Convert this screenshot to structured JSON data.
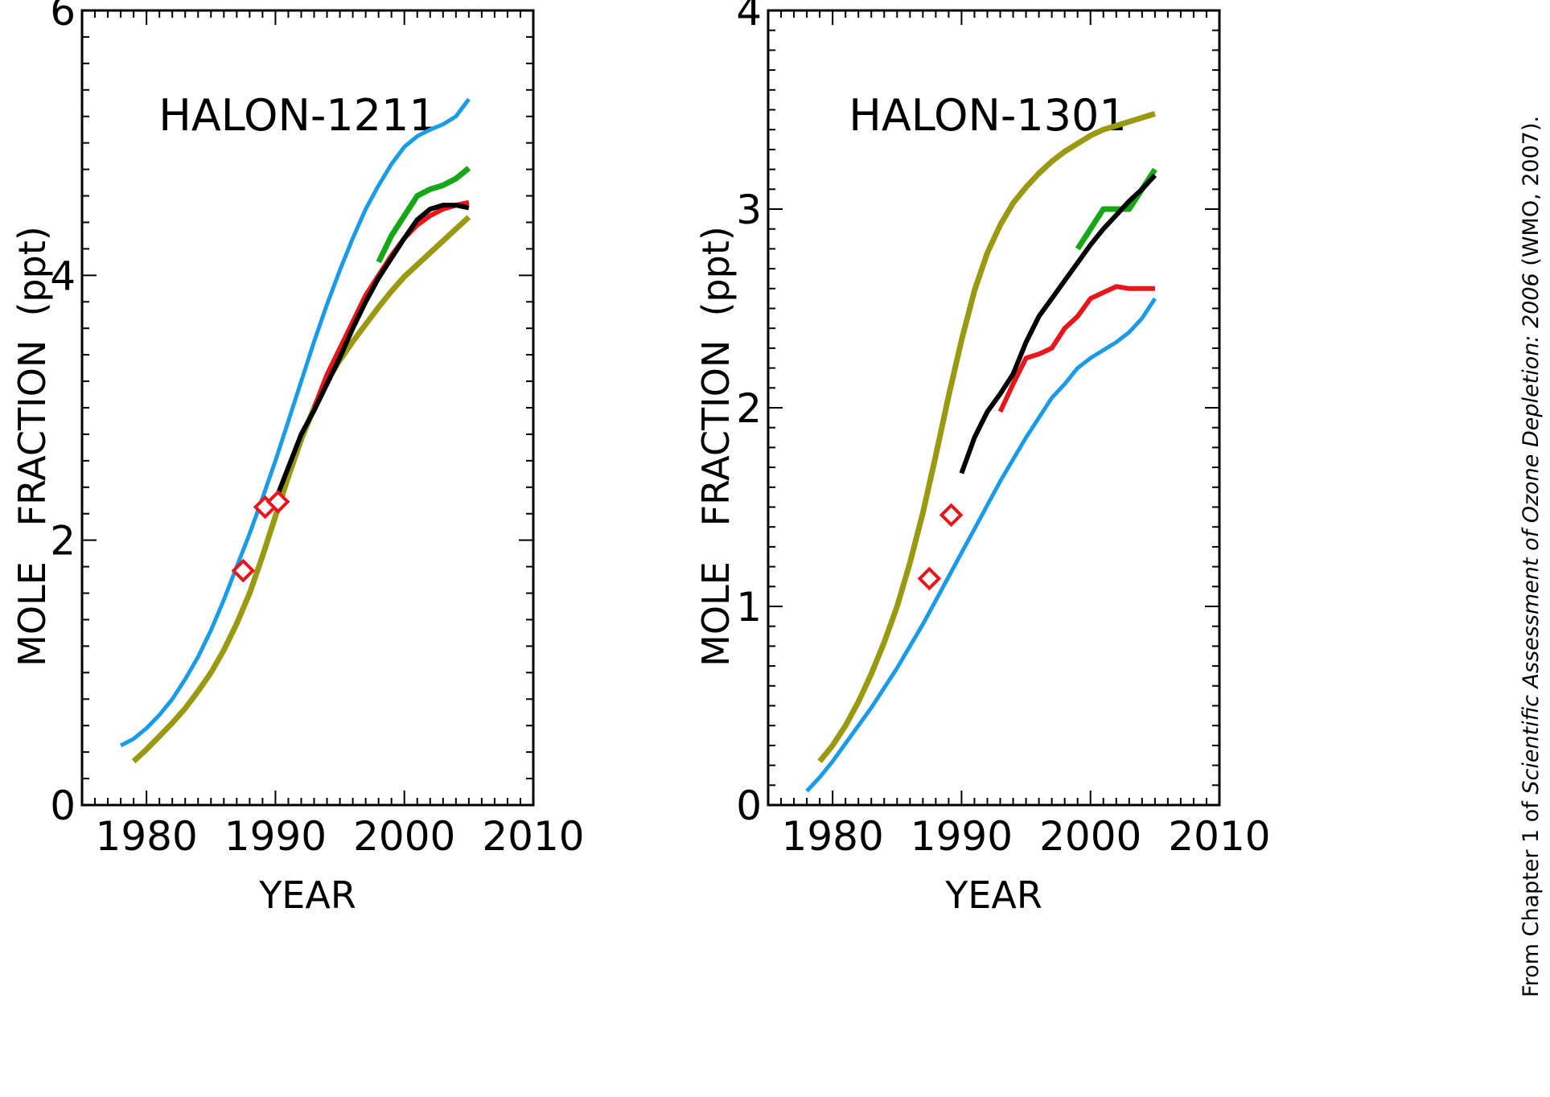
{
  "figure": {
    "credit": {
      "prefix": "From Chapter 1 of ",
      "italic": "Scientific Assessment of Ozone Depletion: 2006",
      "suffix": " (WMO, 2007)."
    }
  },
  "colors": {
    "blue": "#1a9be8",
    "olive": "#9a9a12",
    "green": "#17a617",
    "red": "#e8161a",
    "black": "#000000"
  },
  "chart_data": [
    {
      "type": "line",
      "title": "HALON-1211",
      "xlabel": "YEAR",
      "ylabel": "MOLE   FRACTION  (ppt)",
      "xlim": [
        1975,
        2010
      ],
      "ylim": [
        0,
        6
      ],
      "xticks": [
        1980,
        1990,
        2000,
        2010
      ],
      "yticks": [
        0,
        2,
        4,
        6
      ],
      "series": [
        {
          "color": "blue",
          "width": 5,
          "x": [
            1978,
            1979,
            1980,
            1981,
            1982,
            1983,
            1984,
            1985,
            1986,
            1987,
            1988,
            1989,
            1990,
            1991,
            1992,
            1993,
            1994,
            1995,
            1996,
            1997,
            1998,
            1999,
            2000,
            2001,
            2002,
            2003,
            2004,
            2005
          ],
          "y": [
            0.45,
            0.5,
            0.58,
            0.68,
            0.8,
            0.95,
            1.12,
            1.32,
            1.55,
            1.8,
            2.05,
            2.32,
            2.6,
            2.9,
            3.2,
            3.5,
            3.78,
            4.04,
            4.28,
            4.5,
            4.68,
            4.84,
            4.97,
            5.05,
            5.1,
            5.14,
            5.2,
            5.33
          ]
        },
        {
          "color": "olive",
          "width": 7,
          "x": [
            1979,
            1980,
            1981,
            1982,
            1983,
            1984,
            1985,
            1986,
            1987,
            1988,
            1989,
            1990,
            1991,
            1992,
            1993,
            1994,
            1995,
            1996,
            1997,
            1998,
            1999,
            2000,
            2001,
            2002,
            2003,
            2004,
            2005
          ],
          "y": [
            0.33,
            0.42,
            0.52,
            0.62,
            0.73,
            0.86,
            1.0,
            1.17,
            1.37,
            1.6,
            1.88,
            2.18,
            2.48,
            2.76,
            3.0,
            3.2,
            3.36,
            3.5,
            3.63,
            3.76,
            3.88,
            3.99,
            4.08,
            4.17,
            4.26,
            4.35,
            4.44
          ]
        },
        {
          "color": "red",
          "width": 6,
          "x": [
            1993,
            1994,
            1995,
            1996,
            1997,
            1998,
            1999,
            2000,
            2001,
            2002,
            2003,
            2004,
            2005
          ],
          "y": [
            3.0,
            3.25,
            3.45,
            3.65,
            3.85,
            4.0,
            4.15,
            4.28,
            4.38,
            4.45,
            4.5,
            4.53,
            4.55
          ]
        },
        {
          "color": "green",
          "width": 7,
          "x": [
            1998,
            1999,
            2000,
            2001,
            2002,
            2003,
            2004,
            2005
          ],
          "y": [
            4.1,
            4.3,
            4.45,
            4.6,
            4.65,
            4.68,
            4.73,
            4.81
          ]
        },
        {
          "color": "black",
          "width": 6,
          "x": [
            1990,
            1991,
            1992,
            1993,
            1994,
            1995,
            1996,
            1997,
            1998,
            1999,
            2000,
            2001,
            2002,
            2003,
            2004,
            2005
          ],
          "y": [
            2.3,
            2.55,
            2.8,
            2.98,
            3.18,
            3.38,
            3.6,
            3.8,
            3.98,
            4.13,
            4.28,
            4.42,
            4.5,
            4.53,
            4.53,
            4.51
          ]
        }
      ],
      "markers": {
        "shape": "diamond",
        "color": "red",
        "x": [
          1987.5,
          1989.2,
          1990.2
        ],
        "y": [
          1.77,
          2.25,
          2.29
        ]
      }
    },
    {
      "type": "line",
      "title": "HALON-1301",
      "xlabel": "YEAR",
      "ylabel": "MOLE   FRACTION  (ppt)",
      "xlim": [
        1975,
        2010
      ],
      "ylim": [
        0,
        4
      ],
      "xticks": [
        1980,
        1990,
        2000,
        2010
      ],
      "yticks": [
        0,
        1,
        2,
        3,
        4
      ],
      "series": [
        {
          "color": "olive",
          "width": 7,
          "x": [
            1979,
            1980,
            1981,
            1982,
            1983,
            1984,
            1985,
            1986,
            1987,
            1988,
            1989,
            1990,
            1991,
            1992,
            1993,
            1994,
            1995,
            1996,
            1997,
            1998,
            1999,
            2000,
            2001,
            2002,
            2003,
            2004,
            2005
          ],
          "y": [
            0.22,
            0.3,
            0.4,
            0.52,
            0.66,
            0.82,
            1.0,
            1.22,
            1.47,
            1.76,
            2.06,
            2.34,
            2.59,
            2.78,
            2.92,
            3.03,
            3.11,
            3.18,
            3.24,
            3.29,
            3.33,
            3.37,
            3.4,
            3.42,
            3.44,
            3.46,
            3.48
          ]
        },
        {
          "color": "blue",
          "width": 5,
          "x": [
            1978,
            1979,
            1980,
            1981,
            1982,
            1983,
            1984,
            1985,
            1986,
            1987,
            1988,
            1989,
            1990,
            1991,
            1992,
            1993,
            1994,
            1995,
            1996,
            1997,
            1998,
            1999,
            2000,
            2001,
            2002,
            2003,
            2004,
            2005
          ],
          "y": [
            0.07,
            0.14,
            0.22,
            0.31,
            0.4,
            0.49,
            0.59,
            0.69,
            0.8,
            0.91,
            1.03,
            1.15,
            1.27,
            1.39,
            1.51,
            1.63,
            1.74,
            1.85,
            1.95,
            2.05,
            2.12,
            2.2,
            2.25,
            2.29,
            2.33,
            2.38,
            2.45,
            2.55
          ]
        },
        {
          "color": "red",
          "width": 6,
          "x": [
            1993,
            1994,
            1995,
            1996,
            1997,
            1998,
            1999,
            2000,
            2001,
            2002,
            2003,
            2004,
            2005
          ],
          "y": [
            1.98,
            2.12,
            2.25,
            2.27,
            2.3,
            2.4,
            2.46,
            2.55,
            2.58,
            2.61,
            2.6,
            2.6,
            2.6
          ]
        },
        {
          "color": "green",
          "width": 7,
          "x": [
            1999,
            2000,
            2001,
            2002,
            2003,
            2004,
            2005
          ],
          "y": [
            2.8,
            2.9,
            3.0,
            3.0,
            3.0,
            3.1,
            3.2
          ]
        },
        {
          "color": "black",
          "width": 6,
          "x": [
            1990,
            1991,
            1992,
            1993,
            1994,
            1995,
            1996,
            1997,
            1998,
            1999,
            2000,
            2001,
            2002,
            2003,
            2004,
            2005
          ],
          "y": [
            1.67,
            1.85,
            1.98,
            2.07,
            2.17,
            2.33,
            2.46,
            2.55,
            2.64,
            2.73,
            2.82,
            2.9,
            2.97,
            3.04,
            3.1,
            3.17
          ]
        }
      ],
      "markers": {
        "shape": "diamond",
        "color": "red",
        "x": [
          1987.5,
          1989.2
        ],
        "y": [
          1.14,
          1.46
        ]
      }
    }
  ]
}
